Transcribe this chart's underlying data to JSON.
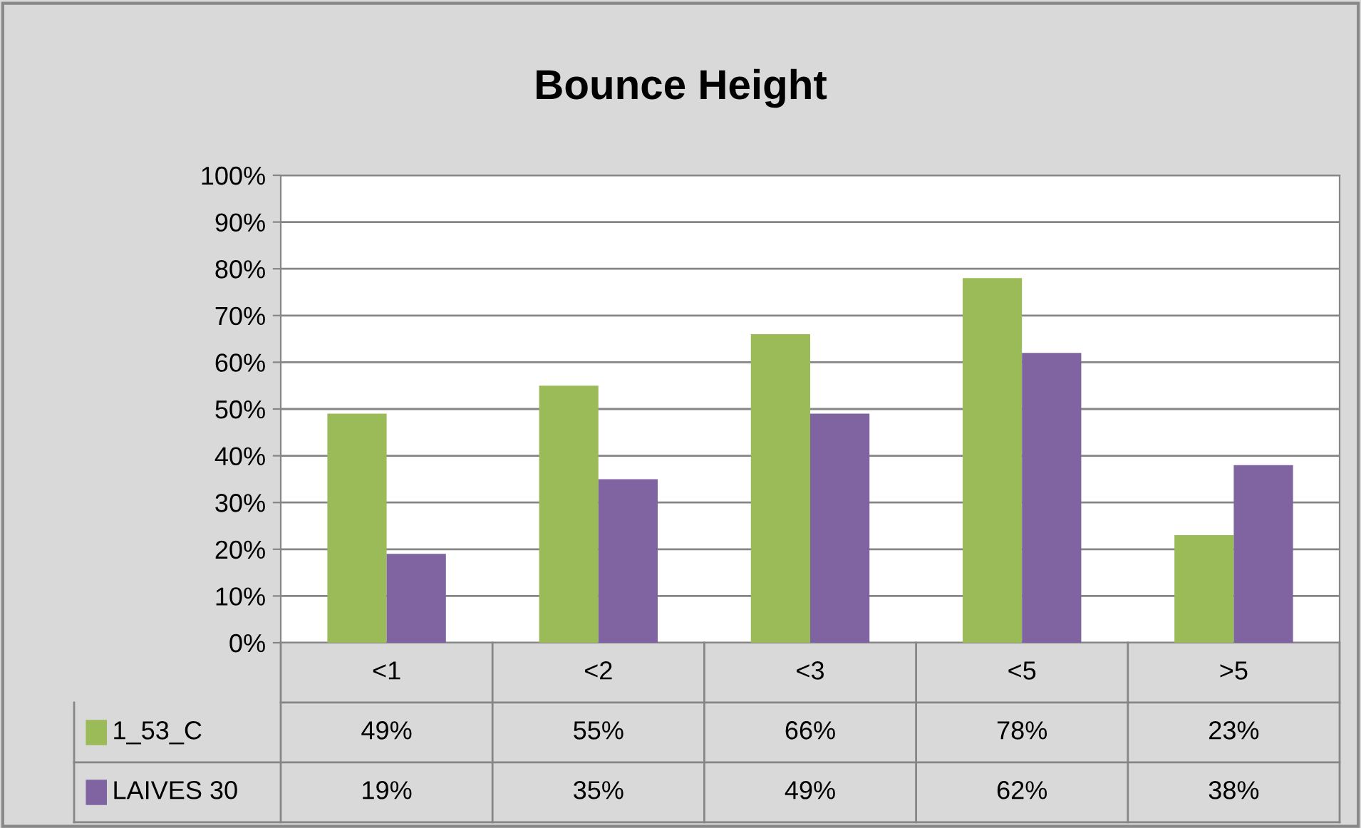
{
  "chart_data": {
    "type": "bar",
    "title": "Bounce Height",
    "categories": [
      "<1",
      "<2",
      "<3",
      "<5",
      ">5"
    ],
    "series": [
      {
        "name": "1_53_C",
        "color": "#9bbb59",
        "values": [
          49,
          55,
          66,
          78,
          23
        ],
        "value_labels": [
          "49%",
          "55%",
          "66%",
          "78%",
          "23%"
        ]
      },
      {
        "name": "LAIVES 30",
        "color": "#8064a2",
        "values": [
          19,
          35,
          49,
          62,
          38
        ],
        "value_labels": [
          "19%",
          "35%",
          "49%",
          "62%",
          "38%"
        ]
      }
    ],
    "ylim": [
      0,
      100
    ],
    "yticks": [
      {
        "value": 0,
        "label": "0%"
      },
      {
        "value": 10,
        "label": "10%"
      },
      {
        "value": 20,
        "label": "20%"
      },
      {
        "value": 30,
        "label": "30%"
      },
      {
        "value": 40,
        "label": "40%"
      },
      {
        "value": 50,
        "label": "50%"
      },
      {
        "value": 60,
        "label": "60%"
      },
      {
        "value": 70,
        "label": "70%"
      },
      {
        "value": 80,
        "label": "80%"
      },
      {
        "value": 90,
        "label": "90%"
      },
      {
        "value": 100,
        "label": "100%"
      }
    ],
    "grid": "y",
    "legend": "bottom left"
  }
}
